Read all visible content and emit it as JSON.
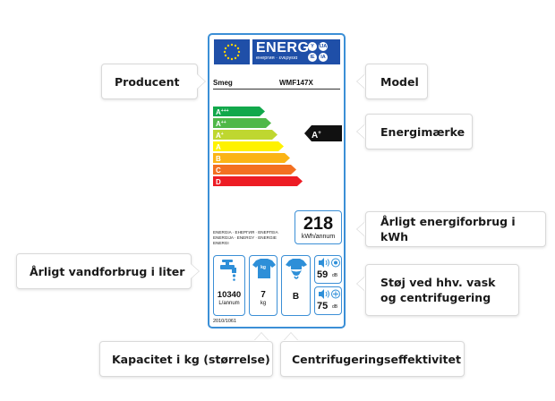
{
  "callouts": {
    "producent": "Producent",
    "model": "Model",
    "energimaerke": "Energimærke",
    "energiforbrug": "Årligt energiforbrug i kWh",
    "vandforbrug": "Årligt vandforbrug i liter",
    "stoj": "Støj ved hhv. vask og centrifugering",
    "kapacitet": "Kapacitet i kg (størrelse)",
    "centrifugering": "Centrifugeringseffektivitet"
  },
  "label": {
    "energ_title": "ENERG",
    "energ_subtitle": "енергия · ενεργεια",
    "lang_badges": [
      "Y",
      "IJA",
      "IE",
      "IA"
    ],
    "brand": "Smeg",
    "model": "WMF147X",
    "classes": [
      {
        "base": "A",
        "sup": "+++",
        "color": "#12a84b"
      },
      {
        "base": "A",
        "sup": "++",
        "color": "#50b848"
      },
      {
        "base": "A",
        "sup": "+",
        "color": "#bfd730"
      },
      {
        "base": "A",
        "sup": "",
        "color": "#fff200"
      },
      {
        "base": "B",
        "sup": "",
        "color": "#fbb416"
      },
      {
        "base": "C",
        "sup": "",
        "color": "#f37021"
      },
      {
        "base": "D",
        "sup": "",
        "color": "#ed1c24"
      }
    ],
    "current_class": {
      "base": "A",
      "sup": "+"
    },
    "kwh_value": "218",
    "kwh_unit": "kWh/annum",
    "energia_text": "ENERGIA · ЕНЕРГИЯ · ΕΝΕΡΓΕΙΑ ENERGIJA · ENERGY · ENERGIE ENERGI",
    "water_value": "10340",
    "water_unit": "L/annum",
    "capacity_value": "7",
    "capacity_unit": "kg",
    "capacity_icon_text": "kg",
    "spin_class": "B",
    "wash_noise": "59",
    "spin_noise": "75",
    "noise_unit": "dB",
    "regulation": "2010/1061"
  }
}
